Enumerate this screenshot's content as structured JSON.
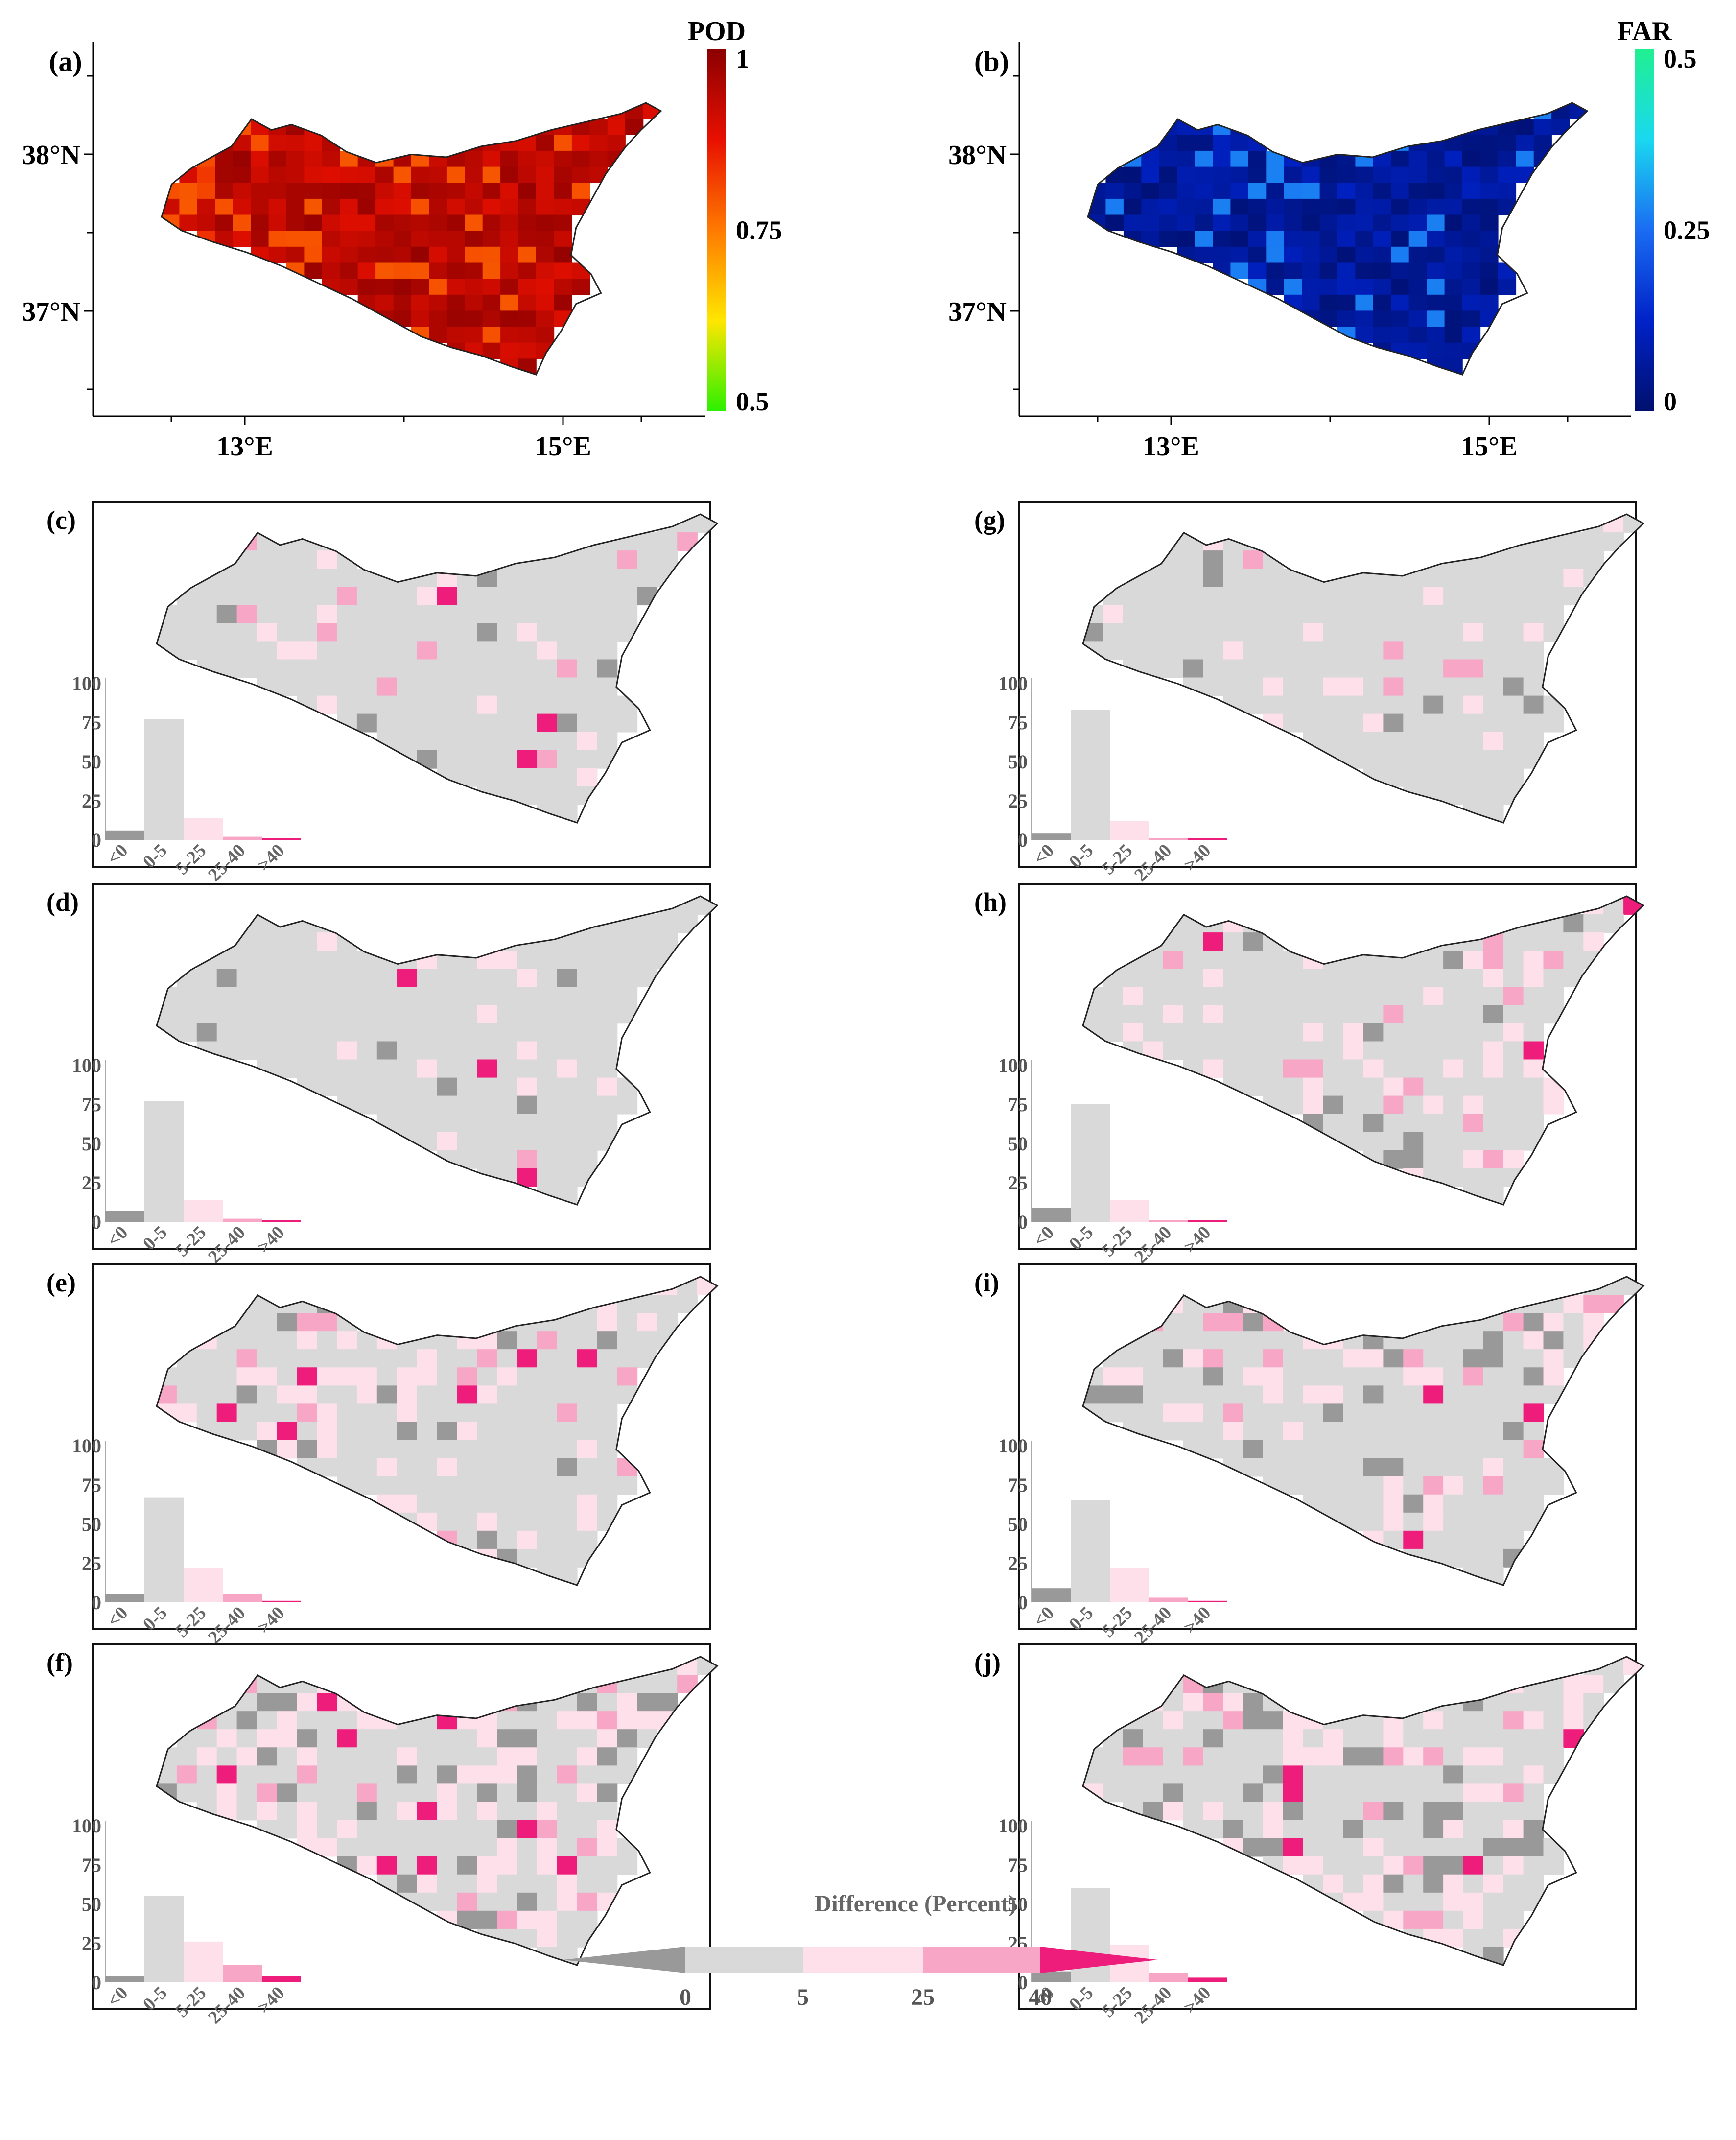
{
  "chart_data": [
    {
      "panel": "(a)",
      "type": "heatmap",
      "colorbar_title": "POD",
      "colorbar_ticks": [
        "1",
        "0.75",
        "0.5"
      ],
      "colorbar_range": [
        0.5,
        1
      ],
      "colormap": [
        "#2cf000",
        "#ffe600",
        "#ff7a00",
        "#e81000",
        "#8b0000"
      ],
      "lat_ticks": [
        "38°N",
        "37°N"
      ],
      "lon_ticks": [
        "13°E",
        "15°E"
      ],
      "typical_value": 0.93
    },
    {
      "panel": "(b)",
      "type": "heatmap",
      "colorbar_title": "FAR",
      "colorbar_ticks": [
        "0.5",
        "0.25",
        "0"
      ],
      "colorbar_range": [
        0,
        0.5
      ],
      "colormap": [
        "#00106e",
        "#0022c8",
        "#1a6cf2",
        "#1ad8f0",
        "#20f090"
      ],
      "lat_ticks": [
        "38°N",
        "37°N"
      ],
      "lon_ticks": [
        "13°E",
        "15°E"
      ],
      "typical_value": 0.05
    },
    {
      "panel": "(c)",
      "type": "bar",
      "categories": [
        "<0",
        "0-5",
        "5-25",
        "25-40",
        ">40"
      ],
      "values": [
        6,
        77,
        14,
        2,
        1
      ],
      "yticks": [
        "100",
        "75",
        "50",
        "25",
        "0"
      ],
      "ylim": [
        0,
        100
      ]
    },
    {
      "panel": "(d)",
      "type": "bar",
      "categories": [
        "<0",
        "0-5",
        "5-25",
        "25-40",
        ">40"
      ],
      "values": [
        7,
        77,
        14,
        2,
        1
      ],
      "yticks": [
        "100",
        "75",
        "50",
        "25",
        "0"
      ],
      "ylim": [
        0,
        100
      ]
    },
    {
      "panel": "(e)",
      "type": "bar",
      "categories": [
        "<0",
        "0-5",
        "5-25",
        "25-40",
        ">40"
      ],
      "values": [
        5,
        67,
        22,
        5,
        1
      ],
      "yticks": [
        "100",
        "75",
        "50",
        "25",
        "0"
      ],
      "ylim": [
        0,
        100
      ]
    },
    {
      "panel": "(f)",
      "type": "bar",
      "categories": [
        "<0",
        "0-5",
        "5-25",
        "25-40",
        ">40"
      ],
      "values": [
        4,
        55,
        26,
        11,
        4
      ],
      "yticks": [
        "100",
        "75",
        "50",
        "25",
        "0"
      ],
      "ylim": [
        0,
        100
      ]
    },
    {
      "panel": "(g)",
      "type": "bar",
      "categories": [
        "<0",
        "0-5",
        "5-25",
        "25-40",
        ">40"
      ],
      "values": [
        4,
        83,
        12,
        1,
        1
      ],
      "yticks": [
        "100",
        "75",
        "50",
        "25",
        "0"
      ],
      "ylim": [
        0,
        100
      ]
    },
    {
      "panel": "(h)",
      "type": "bar",
      "categories": [
        "<0",
        "0-5",
        "5-25",
        "25-40",
        ">40"
      ],
      "values": [
        9,
        75,
        14,
        1,
        1
      ],
      "yticks": [
        "100",
        "75",
        "50",
        "25",
        "0"
      ],
      "ylim": [
        0,
        100
      ]
    },
    {
      "panel": "(i)",
      "type": "bar",
      "categories": [
        "<0",
        "0-5",
        "5-25",
        "25-40",
        ">40"
      ],
      "values": [
        9,
        65,
        22,
        3,
        1
      ],
      "yticks": [
        "100",
        "75",
        "50",
        "25",
        "0"
      ],
      "ylim": [
        0,
        100
      ]
    },
    {
      "panel": "(j)",
      "type": "bar",
      "categories": [
        "<0",
        "0-5",
        "5-25",
        "25-40",
        ">40"
      ],
      "values": [
        7,
        60,
        24,
        6,
        3
      ],
      "yticks": [
        "100",
        "75",
        "50",
        "25",
        "0"
      ],
      "ylim": [
        0,
        100
      ]
    }
  ],
  "legend": {
    "title": "Difference (Percent)",
    "ticks": [
      "0",
      "5",
      "25",
      "40"
    ],
    "colors": {
      "lt0": "#999999",
      "b0_5": "#d9d9d9",
      "b5_25": "#fde0ea",
      "b25_40": "#f7a6c6",
      "gt40": "#ee1d7b"
    }
  }
}
